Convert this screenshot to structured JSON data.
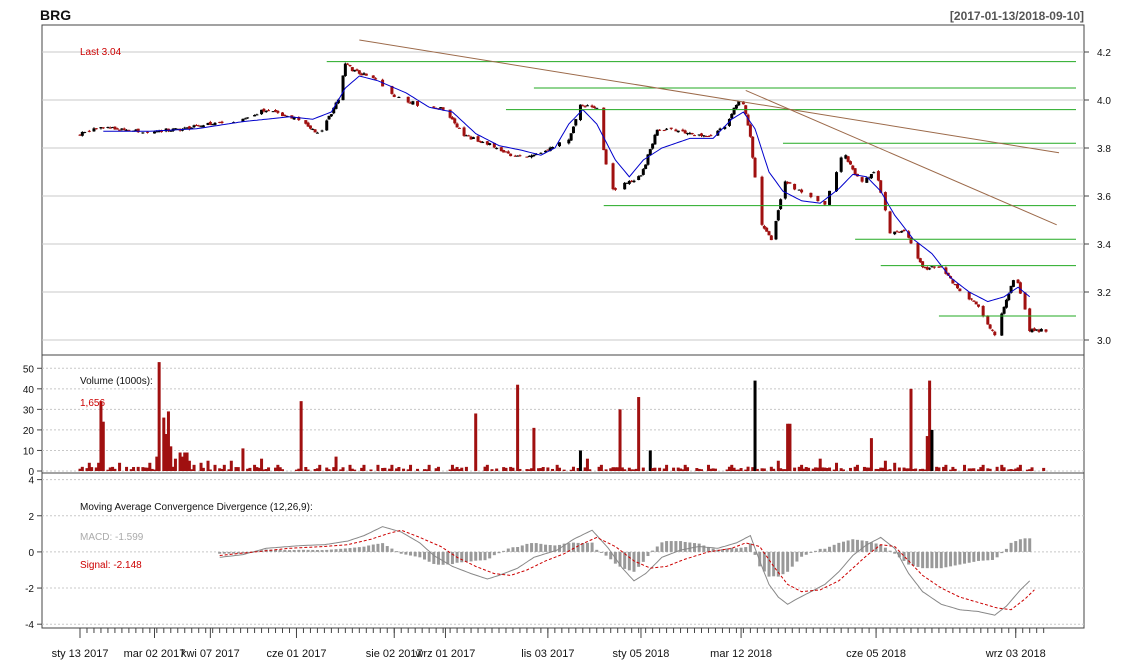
{
  "header": {
    "symbol": "BRG",
    "date_range": "[2017-01-13/2018-09-10]"
  },
  "price_panel": {
    "last_label": "Last 3.04",
    "y_ticks": [
      "4.2",
      "4.0",
      "3.8",
      "3.6",
      "3.4",
      "3.2",
      "3.0"
    ],
    "ylim": [
      2.95,
      4.3
    ]
  },
  "volume_panel": {
    "title": "Volume (1000s):",
    "last_value": "1,656",
    "y_ticks": [
      "50",
      "40",
      "30",
      "20",
      "10",
      "0"
    ],
    "ylim": [
      0,
      55
    ]
  },
  "macd_panel": {
    "title": "Moving Average Convergence Divergence (12,26,9):",
    "macd_label": "MACD: -1.599",
    "signal_label": "Signal: -2.148",
    "y_ticks": [
      "4",
      "2",
      "0",
      "-2",
      "-4"
    ],
    "ylim": [
      -4.1,
      4.2
    ]
  },
  "x_axis": {
    "labels": [
      "sty 13 2017",
      "mar 02 2017",
      "kwi 07 2017",
      "cze 01 2017",
      "sie 02 2017",
      "wrz 01 2017",
      "lis 03 2017",
      "sty 05 2018",
      "mar 12 2018",
      "cze 05 2018",
      "wrz 03 2018"
    ],
    "label_index": [
      0,
      32,
      56,
      93,
      135,
      157,
      201,
      241,
      284,
      342,
      402
    ]
  },
  "colors": {
    "up": "#000000",
    "down": "#a01010",
    "ma_line": "#0000cc",
    "trendline": "#9c6a4a",
    "level_line": "#22aa22",
    "grid": "#c8c8c8",
    "red_text": "#cc0000",
    "macd_hist": "#999999"
  },
  "chart_data": [
    {
      "type": "candlestick",
      "title": "BRG",
      "ylim": [
        2.95,
        4.3
      ],
      "n_sessions": 416,
      "close_anchors": [
        [
          0,
          3.86
        ],
        [
          10,
          3.89
        ],
        [
          20,
          3.87
        ],
        [
          32,
          3.87
        ],
        [
          45,
          3.88
        ],
        [
          56,
          3.9
        ],
        [
          70,
          3.92
        ],
        [
          80,
          3.96
        ],
        [
          93,
          3.92
        ],
        [
          103,
          3.86
        ],
        [
          111,
          4.0
        ],
        [
          114,
          4.15
        ],
        [
          118,
          4.12
        ],
        [
          128,
          4.08
        ],
        [
          135,
          4.02
        ],
        [
          145,
          3.98
        ],
        [
          157,
          3.96
        ],
        [
          165,
          3.85
        ],
        [
          175,
          3.82
        ],
        [
          185,
          3.77
        ],
        [
          193,
          3.76
        ],
        [
          201,
          3.79
        ],
        [
          210,
          3.84
        ],
        [
          215,
          3.98
        ],
        [
          222,
          3.96
        ],
        [
          228,
          3.62
        ],
        [
          234,
          3.65
        ],
        [
          241,
          3.68
        ],
        [
          248,
          3.88
        ],
        [
          255,
          3.88
        ],
        [
          262,
          3.86
        ],
        [
          270,
          3.85
        ],
        [
          278,
          3.9
        ],
        [
          284,
          4.02
        ],
        [
          288,
          3.85
        ],
        [
          292,
          3.5
        ],
        [
          297,
          3.42
        ],
        [
          303,
          3.66
        ],
        [
          312,
          3.6
        ],
        [
          320,
          3.57
        ],
        [
          328,
          3.78
        ],
        [
          335,
          3.66
        ],
        [
          342,
          3.7
        ],
        [
          348,
          3.45
        ],
        [
          355,
          3.45
        ],
        [
          362,
          3.3
        ],
        [
          370,
          3.3
        ],
        [
          378,
          3.2
        ],
        [
          385,
          3.15
        ],
        [
          393,
          3.02
        ],
        [
          402,
          3.28
        ],
        [
          408,
          3.04
        ],
        [
          415,
          3.04
        ]
      ],
      "ma_anchors": [
        [
          10,
          3.87
        ],
        [
          30,
          3.87
        ],
        [
          50,
          3.88
        ],
        [
          70,
          3.91
        ],
        [
          90,
          3.93
        ],
        [
          100,
          3.92
        ],
        [
          108,
          3.95
        ],
        [
          114,
          4.05
        ],
        [
          120,
          4.1
        ],
        [
          128,
          4.08
        ],
        [
          140,
          4.03
        ],
        [
          150,
          3.97
        ],
        [
          160,
          3.95
        ],
        [
          170,
          3.86
        ],
        [
          180,
          3.81
        ],
        [
          190,
          3.79
        ],
        [
          198,
          3.77
        ],
        [
          204,
          3.8
        ],
        [
          210,
          3.9
        ],
        [
          216,
          3.96
        ],
        [
          222,
          3.9
        ],
        [
          230,
          3.75
        ],
        [
          236,
          3.68
        ],
        [
          242,
          3.75
        ],
        [
          250,
          3.8
        ],
        [
          262,
          3.84
        ],
        [
          272,
          3.84
        ],
        [
          280,
          3.92
        ],
        [
          285,
          3.95
        ],
        [
          290,
          3.88
        ],
        [
          296,
          3.7
        ],
        [
          302,
          3.62
        ],
        [
          310,
          3.58
        ],
        [
          318,
          3.57
        ],
        [
          326,
          3.63
        ],
        [
          332,
          3.69
        ],
        [
          338,
          3.68
        ],
        [
          344,
          3.62
        ],
        [
          350,
          3.52
        ],
        [
          358,
          3.42
        ],
        [
          366,
          3.36
        ],
        [
          374,
          3.26
        ],
        [
          382,
          3.2
        ],
        [
          390,
          3.16
        ],
        [
          397,
          3.18
        ],
        [
          403,
          3.22
        ],
        [
          408,
          3.18
        ]
      ],
      "horizontal_levels": [
        [
          106,
          415,
          4.16
        ],
        [
          195,
          415,
          4.05
        ],
        [
          183,
          415,
          3.96
        ],
        [
          302,
          415,
          3.82
        ],
        [
          225,
          415,
          3.56
        ],
        [
          333,
          415,
          3.42
        ],
        [
          344,
          415,
          3.31
        ],
        [
          369,
          415,
          3.1
        ]
      ],
      "trendlines": [
        [
          120,
          4.25,
          412,
          3.78
        ],
        [
          286,
          4.04,
          411,
          3.48
        ]
      ],
      "last": 3.04
    },
    {
      "type": "bar",
      "title": "Volume (1000s)",
      "ylim": [
        0,
        55
      ],
      "baseline_anchors": [
        [
          0,
          1.5
        ],
        [
          100,
          1.5
        ],
        [
          200,
          1.5
        ],
        [
          300,
          1.5
        ],
        [
          415,
          1.5
        ]
      ],
      "spikes": [
        [
          4,
          4
        ],
        [
          8,
          4
        ],
        [
          9,
          34
        ],
        [
          10,
          24
        ],
        [
          14,
          2
        ],
        [
          17,
          4
        ],
        [
          20,
          2
        ],
        [
          25,
          2
        ],
        [
          30,
          4
        ],
        [
          33,
          7
        ],
        [
          34,
          53
        ],
        [
          36,
          26
        ],
        [
          37,
          18
        ],
        [
          38,
          29
        ],
        [
          39,
          12
        ],
        [
          41,
          6
        ],
        [
          43,
          9
        ],
        [
          44,
          7
        ],
        [
          45,
          9
        ],
        [
          46,
          9
        ],
        [
          47,
          5
        ],
        [
          49,
          3
        ],
        [
          52,
          4
        ],
        [
          55,
          5
        ],
        [
          58,
          3
        ],
        [
          62,
          3
        ],
        [
          65,
          5
        ],
        [
          70,
          11
        ],
        [
          75,
          3
        ],
        [
          78,
          6
        ],
        [
          85,
          3
        ],
        [
          95,
          34
        ],
        [
          103,
          3
        ],
        [
          110,
          7
        ],
        [
          116,
          3
        ],
        [
          122,
          3
        ],
        [
          128,
          3
        ],
        [
          134,
          3
        ],
        [
          142,
          3
        ],
        [
          150,
          3
        ],
        [
          160,
          3
        ],
        [
          170,
          28
        ],
        [
          175,
          3
        ],
        [
          188,
          42
        ],
        [
          195,
          21
        ],
        [
          205,
          3
        ],
        [
          215,
          10
        ],
        [
          218,
          6
        ],
        [
          224,
          3
        ],
        [
          232,
          30
        ],
        [
          240,
          36
        ],
        [
          245,
          10
        ],
        [
          252,
          3
        ],
        [
          260,
          3
        ],
        [
          270,
          3
        ],
        [
          280,
          3
        ],
        [
          290,
          44
        ],
        [
          300,
          5
        ],
        [
          304,
          23
        ],
        [
          305,
          23
        ],
        [
          310,
          3
        ],
        [
          318,
          6
        ],
        [
          325,
          4
        ],
        [
          334,
          3
        ],
        [
          340,
          16
        ],
        [
          346,
          5
        ],
        [
          350,
          4
        ],
        [
          357,
          40
        ],
        [
          364,
          17
        ],
        [
          365,
          44
        ],
        [
          366,
          20
        ],
        [
          372,
          3
        ],
        [
          380,
          3
        ],
        [
          388,
          3
        ],
        [
          396,
          3
        ],
        [
          404,
          3
        ]
      ]
    },
    {
      "type": "line",
      "title": "Moving Average Convergence Divergence (12,26,9)",
      "ylim": [
        -4.1,
        4.2
      ],
      "series": [
        {
          "name": "MACD",
          "anchors": [
            [
              60,
              -0.3
            ],
            [
              70,
              -0.15
            ],
            [
              80,
              0.2
            ],
            [
              95,
              0.35
            ],
            [
              105,
              0.4
            ],
            [
              115,
              0.6
            ],
            [
              122,
              0.9
            ],
            [
              130,
              1.4
            ],
            [
              138,
              1.1
            ],
            [
              146,
              0.5
            ],
            [
              152,
              -0.2
            ],
            [
              160,
              -0.8
            ],
            [
              168,
              -1.2
            ],
            [
              175,
              -1.5
            ],
            [
              180,
              -1.3
            ],
            [
              188,
              -0.9
            ],
            [
              195,
              -0.3
            ],
            [
              205,
              0.1
            ],
            [
              212,
              0.7
            ],
            [
              220,
              1.2
            ],
            [
              227,
              0.2
            ],
            [
              233,
              -0.9
            ],
            [
              238,
              -1.6
            ],
            [
              243,
              -1.2
            ],
            [
              250,
              -0.3
            ],
            [
              258,
              0.1
            ],
            [
              266,
              0.3
            ],
            [
              274,
              0.2
            ],
            [
              282,
              0.5
            ],
            [
              288,
              0.9
            ],
            [
              292,
              -0.5
            ],
            [
              296,
              -1.8
            ],
            [
              300,
              -2.5
            ],
            [
              304,
              -2.9
            ],
            [
              308,
              -2.6
            ],
            [
              314,
              -2.2
            ],
            [
              320,
              -1.8
            ],
            [
              326,
              -1.1
            ],
            [
              332,
              -0.2
            ],
            [
              338,
              0.4
            ],
            [
              344,
              0.8
            ],
            [
              350,
              0.2
            ],
            [
              356,
              -1.2
            ],
            [
              362,
              -2.2
            ],
            [
              370,
              -2.9
            ],
            [
              378,
              -3.2
            ],
            [
              386,
              -3.3
            ],
            [
              393,
              -3.5
            ],
            [
              398,
              -3.0
            ],
            [
              404,
              -2.1
            ],
            [
              408,
              -1.6
            ]
          ]
        },
        {
          "name": "Signal",
          "anchors": [
            [
              60,
              -0.2
            ],
            [
              75,
              0.0
            ],
            [
              90,
              0.2
            ],
            [
              105,
              0.3
            ],
            [
              115,
              0.4
            ],
            [
              125,
              0.7
            ],
            [
              132,
              1.0
            ],
            [
              138,
              1.2
            ],
            [
              146,
              0.8
            ],
            [
              155,
              0.3
            ],
            [
              162,
              -0.3
            ],
            [
              170,
              -0.8
            ],
            [
              178,
              -1.2
            ],
            [
              185,
              -1.3
            ],
            [
              192,
              -1.0
            ],
            [
              200,
              -0.5
            ],
            [
              208,
              -0.1
            ],
            [
              215,
              0.4
            ],
            [
              222,
              0.8
            ],
            [
              230,
              0.3
            ],
            [
              238,
              -0.5
            ],
            [
              245,
              -0.9
            ],
            [
              252,
              -0.8
            ],
            [
              260,
              -0.4
            ],
            [
              270,
              0.0
            ],
            [
              280,
              0.2
            ],
            [
              286,
              0.5
            ],
            [
              292,
              0.3
            ],
            [
              298,
              -0.8
            ],
            [
              304,
              -1.8
            ],
            [
              310,
              -2.2
            ],
            [
              318,
              -2.1
            ],
            [
              326,
              -1.6
            ],
            [
              332,
              -0.9
            ],
            [
              338,
              -0.2
            ],
            [
              344,
              0.4
            ],
            [
              350,
              0.3
            ],
            [
              356,
              -0.5
            ],
            [
              362,
              -1.3
            ],
            [
              370,
              -2.0
            ],
            [
              378,
              -2.5
            ],
            [
              386,
              -2.8
            ],
            [
              394,
              -3.1
            ],
            [
              400,
              -3.2
            ],
            [
              406,
              -2.6
            ],
            [
              410,
              -2.1
            ]
          ]
        }
      ],
      "histogram_from": 60,
      "last_macd": -1.599,
      "last_signal": -2.148
    }
  ]
}
